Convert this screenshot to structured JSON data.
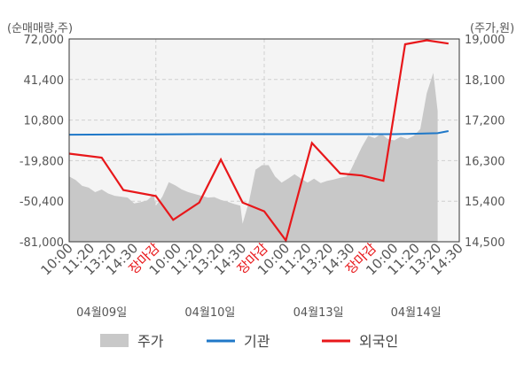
{
  "chart_data": {
    "type": "line",
    "left_axis_unit": "(순매매량,주)",
    "right_axis_unit": "(주가,원)",
    "y_left": {
      "ticks": [
        72000,
        41400,
        10800,
        -19800,
        -50400,
        -81000
      ],
      "labels": [
        "72,000",
        "41,400",
        "10,800",
        "-19,800",
        "-50,400",
        "-81,000"
      ],
      "range": [
        -81000,
        72000
      ]
    },
    "y_right": {
      "ticks": [
        19000,
        18100,
        17200,
        16300,
        15400,
        14500
      ],
      "labels": [
        "19,000",
        "18,100",
        "17,200",
        "16,300",
        "15,400",
        "14,500"
      ],
      "range": [
        14500,
        19000
      ]
    },
    "x_ticks": [
      {
        "label": "10:00",
        "red": false
      },
      {
        "label": "11:20",
        "red": false
      },
      {
        "label": "13:20",
        "red": false
      },
      {
        "label": "14:30",
        "red": false
      },
      {
        "label": "장마감",
        "red": true
      },
      {
        "label": "10:00",
        "red": false
      },
      {
        "label": "11:20",
        "red": false
      },
      {
        "label": "13:20",
        "red": false
      },
      {
        "label": "14:30",
        "red": false
      },
      {
        "label": "장마감",
        "red": true
      },
      {
        "label": "10:00",
        "red": false
      },
      {
        "label": "11:20",
        "red": false
      },
      {
        "label": "13:20",
        "red": false
      },
      {
        "label": "14:30",
        "red": false
      },
      {
        "label": "장마감",
        "red": true
      },
      {
        "label": "10:00",
        "red": false
      },
      {
        "label": "11:20",
        "red": false
      },
      {
        "label": "13:20",
        "red": false
      },
      {
        "label": "14:30",
        "red": false
      }
    ],
    "dates": [
      "04월09일",
      "04월10일",
      "04월13일",
      "04월14일"
    ],
    "series": [
      {
        "name": "주가",
        "axis": "right",
        "color": "#c8c8c8",
        "kind": "area",
        "x": [
          0.0,
          0.3,
          0.6,
          0.9,
          1.2,
          1.5,
          1.8,
          2.1,
          2.4,
          2.7,
          3.0,
          3.3,
          3.6,
          3.9,
          4.0,
          4.3,
          4.6,
          4.9,
          5.2,
          5.5,
          5.8,
          6.1,
          6.4,
          6.7,
          7.0,
          7.3,
          7.6,
          7.9,
          8.0,
          8.3,
          8.6,
          8.9,
          9.2,
          9.5,
          9.8,
          10.1,
          10.4,
          10.7,
          11.0,
          11.3,
          11.6,
          11.9,
          12.2,
          12.5,
          12.8,
          13.0,
          13.2,
          13.5,
          13.8,
          14.1,
          14.4,
          14.7,
          15.0,
          15.3,
          15.6,
          15.9,
          16.2,
          16.5,
          16.8,
          17.0
        ],
        "values": [
          15950,
          15870,
          15740,
          15700,
          15600,
          15660,
          15570,
          15520,
          15500,
          15480,
          15350,
          15380,
          15420,
          15550,
          15300,
          15500,
          15820,
          15750,
          15660,
          15600,
          15560,
          15520,
          15480,
          15490,
          15430,
          15390,
          15340,
          15300,
          14900,
          15400,
          16100,
          16200,
          16200,
          15950,
          15810,
          15900,
          16000,
          15900,
          15810,
          15900,
          15800,
          15850,
          15880,
          15920,
          15950,
          16100,
          16300,
          16600,
          16850,
          16800,
          16900,
          16780,
          16750,
          16830,
          16780,
          16850,
          17000,
          17800,
          18250,
          17400
        ]
      },
      {
        "name": "기관",
        "axis": "left",
        "color": "#1f78c8",
        "kind": "line",
        "x": [
          0,
          1,
          2,
          3,
          4,
          5,
          6,
          7,
          8,
          9,
          10,
          11,
          12,
          13,
          14,
          15,
          16,
          17,
          17.5
        ],
        "values": [
          -200,
          -150,
          -100,
          -50,
          0,
          100,
          200,
          200,
          200,
          200,
          200,
          200,
          200,
          200,
          200,
          200,
          500,
          900,
          2500
        ]
      },
      {
        "name": "외국인",
        "axis": "left",
        "color": "#e8171a",
        "kind": "line",
        "x": [
          0,
          1.5,
          2.5,
          4,
          4.8,
          6,
          7,
          8,
          9,
          10,
          11.2,
          12.5,
          13.5,
          14.5,
          15.5,
          16.5,
          17.5
        ],
        "values": [
          -14500,
          -17500,
          -42000,
          -46500,
          -64500,
          -51500,
          -19000,
          -51500,
          -58000,
          -80000,
          -6500,
          -29500,
          -31000,
          -35000,
          68000,
          71000,
          68500
        ]
      }
    ]
  }
}
